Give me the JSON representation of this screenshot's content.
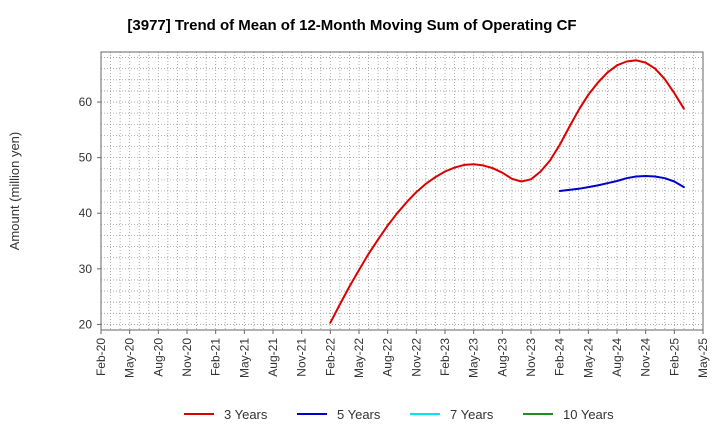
{
  "chart_data": {
    "type": "line",
    "title": "[3977]  Trend of Mean of 12-Month Moving Sum of Operating CF",
    "xlabel": "",
    "ylabel": "Amount (million yen)",
    "x_ticks": [
      "Feb-20",
      "May-20",
      "Aug-20",
      "Nov-20",
      "Feb-21",
      "May-21",
      "Aug-21",
      "Nov-21",
      "Feb-22",
      "May-22",
      "Aug-22",
      "Nov-22",
      "Feb-23",
      "May-23",
      "Aug-23",
      "Nov-23",
      "Feb-24",
      "May-24",
      "Aug-24",
      "Nov-24",
      "Feb-25",
      "May-25"
    ],
    "y_ticks": [
      20,
      30,
      40,
      50,
      60
    ],
    "ylim": [
      19,
      69
    ],
    "grid": true,
    "legend_position": "bottom",
    "series": [
      {
        "name": "3 Years",
        "color": "#dd0000",
        "points": [
          [
            "Feb-22",
            20.3
          ],
          [
            "Mar-22",
            23.6
          ],
          [
            "Apr-22",
            26.8
          ],
          [
            "May-22",
            29.8
          ],
          [
            "Jun-22",
            32.7
          ],
          [
            "Jul-22",
            35.3
          ],
          [
            "Aug-22",
            37.8
          ],
          [
            "Sep-22",
            40.0
          ],
          [
            "Oct-22",
            42.0
          ],
          [
            "Nov-22",
            43.8
          ],
          [
            "Dec-22",
            45.3
          ],
          [
            "Jan-23",
            46.5
          ],
          [
            "Feb-23",
            47.5
          ],
          [
            "Mar-23",
            48.2
          ],
          [
            "Apr-23",
            48.7
          ],
          [
            "May-23",
            48.8
          ],
          [
            "Jun-23",
            48.6
          ],
          [
            "Jul-23",
            48.1
          ],
          [
            "Aug-23",
            47.3
          ],
          [
            "Sep-23",
            46.2
          ],
          [
            "Oct-23",
            45.7
          ],
          [
            "Nov-23",
            46.1
          ],
          [
            "Dec-23",
            47.5
          ],
          [
            "Jan-24",
            49.5
          ],
          [
            "Feb-24",
            52.3
          ],
          [
            "Mar-24",
            55.5
          ],
          [
            "Apr-24",
            58.6
          ],
          [
            "May-24",
            61.3
          ],
          [
            "Jun-24",
            63.5
          ],
          [
            "Jul-24",
            65.3
          ],
          [
            "Aug-24",
            66.6
          ],
          [
            "Sep-24",
            67.3
          ],
          [
            "Oct-24",
            67.5
          ],
          [
            "Nov-24",
            67.1
          ],
          [
            "Dec-24",
            66.0
          ],
          [
            "Jan-25",
            64.1
          ],
          [
            "Feb-25",
            61.6
          ],
          [
            "Mar-25",
            58.8
          ]
        ]
      },
      {
        "name": "5 Years",
        "color": "#0000cc",
        "points": [
          [
            "Feb-24",
            44.0
          ],
          [
            "Mar-24",
            44.2
          ],
          [
            "Apr-24",
            44.4
          ],
          [
            "May-24",
            44.7
          ],
          [
            "Jun-24",
            45.0
          ],
          [
            "Jul-24",
            45.4
          ],
          [
            "Aug-24",
            45.8
          ],
          [
            "Sep-24",
            46.3
          ],
          [
            "Oct-24",
            46.6
          ],
          [
            "Nov-24",
            46.7
          ],
          [
            "Dec-24",
            46.6
          ],
          [
            "Jan-25",
            46.3
          ],
          [
            "Feb-25",
            45.7
          ],
          [
            "Mar-25",
            44.7
          ]
        ]
      },
      {
        "name": "7 Years",
        "color": "#00e5ee",
        "points": []
      },
      {
        "name": "10 Years",
        "color": "#228b22",
        "points": []
      }
    ]
  }
}
